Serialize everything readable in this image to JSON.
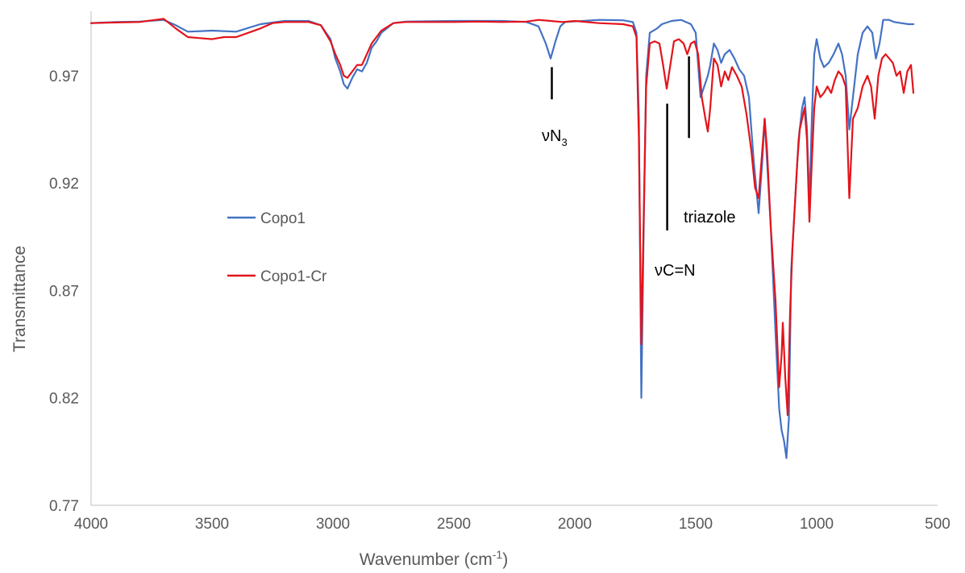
{
  "chart_data": {
    "type": "line",
    "title": "",
    "xlabel": "Wavenumber (cm",
    "xlabel_sup": "-1",
    "xlabel_tail": ")",
    "ylabel": "Transmittance",
    "xlim": [
      4000,
      500
    ],
    "ylim": [
      0.77,
      1.0
    ],
    "x_reversed": true,
    "x_ticks": [
      "4000",
      "3500",
      "3000",
      "2500",
      "2000",
      "1500",
      "1000",
      "500"
    ],
    "y_ticks": [
      "0.77",
      "0.82",
      "0.87",
      "0.92",
      "0.97"
    ],
    "grid": false,
    "legend_position": "center-left",
    "series": [
      {
        "name": "Copo1",
        "color": "#4472C4",
        "points": [
          [
            4000,
            0.9945
          ],
          [
            3900,
            0.995
          ],
          [
            3800,
            0.9952
          ],
          [
            3700,
            0.996
          ],
          [
            3650,
            0.9935
          ],
          [
            3600,
            0.9905
          ],
          [
            3500,
            0.991
          ],
          [
            3400,
            0.9905
          ],
          [
            3300,
            0.994
          ],
          [
            3200,
            0.9955
          ],
          [
            3100,
            0.9955
          ],
          [
            3050,
            0.9935
          ],
          [
            3010,
            0.987
          ],
          [
            2990,
            0.978
          ],
          [
            2970,
            0.972
          ],
          [
            2955,
            0.966
          ],
          [
            2940,
            0.964
          ],
          [
            2920,
            0.969
          ],
          [
            2900,
            0.973
          ],
          [
            2880,
            0.972
          ],
          [
            2860,
            0.976
          ],
          [
            2840,
            0.983
          ],
          [
            2820,
            0.986
          ],
          [
            2800,
            0.99
          ],
          [
            2750,
            0.9945
          ],
          [
            2700,
            0.9952
          ],
          [
            2500,
            0.9955
          ],
          [
            2300,
            0.9955
          ],
          [
            2200,
            0.995
          ],
          [
            2150,
            0.993
          ],
          [
            2120,
            0.985
          ],
          [
            2100,
            0.978
          ],
          [
            2080,
            0.986
          ],
          [
            2060,
            0.993
          ],
          [
            2040,
            0.995
          ],
          [
            1900,
            0.996
          ],
          [
            1800,
            0.9958
          ],
          [
            1760,
            0.995
          ],
          [
            1745,
            0.99
          ],
          [
            1735,
            0.95
          ],
          [
            1725,
            0.82
          ],
          [
            1715,
            0.9
          ],
          [
            1705,
            0.97
          ],
          [
            1690,
            0.99
          ],
          [
            1660,
            0.992
          ],
          [
            1640,
            0.994
          ],
          [
            1600,
            0.9955
          ],
          [
            1560,
            0.996
          ],
          [
            1520,
            0.994
          ],
          [
            1500,
            0.99
          ],
          [
            1480,
            0.96
          ],
          [
            1465,
            0.965
          ],
          [
            1450,
            0.97
          ],
          [
            1440,
            0.975
          ],
          [
            1425,
            0.985
          ],
          [
            1410,
            0.982
          ],
          [
            1395,
            0.976
          ],
          [
            1380,
            0.98
          ],
          [
            1360,
            0.982
          ],
          [
            1340,
            0.978
          ],
          [
            1320,
            0.973
          ],
          [
            1300,
            0.97
          ],
          [
            1280,
            0.96
          ],
          [
            1260,
            0.93
          ],
          [
            1240,
            0.906
          ],
          [
            1225,
            0.93
          ],
          [
            1215,
            0.95
          ],
          [
            1205,
            0.93
          ],
          [
            1190,
            0.9
          ],
          [
            1170,
            0.85
          ],
          [
            1155,
            0.815
          ],
          [
            1145,
            0.805
          ],
          [
            1135,
            0.8
          ],
          [
            1125,
            0.792
          ],
          [
            1115,
            0.81
          ],
          [
            1105,
            0.88
          ],
          [
            1095,
            0.9
          ],
          [
            1085,
            0.92
          ],
          [
            1075,
            0.94
          ],
          [
            1060,
            0.955
          ],
          [
            1050,
            0.96
          ],
          [
            1040,
            0.945
          ],
          [
            1030,
            0.91
          ],
          [
            1020,
            0.95
          ],
          [
            1010,
            0.98
          ],
          [
            1000,
            0.987
          ],
          [
            985,
            0.978
          ],
          [
            970,
            0.974
          ],
          [
            950,
            0.976
          ],
          [
            930,
            0.98
          ],
          [
            910,
            0.985
          ],
          [
            895,
            0.98
          ],
          [
            880,
            0.97
          ],
          [
            865,
            0.945
          ],
          [
            850,
            0.96
          ],
          [
            830,
            0.98
          ],
          [
            810,
            0.99
          ],
          [
            790,
            0.993
          ],
          [
            770,
            0.99
          ],
          [
            755,
            0.978
          ],
          [
            740,
            0.985
          ],
          [
            725,
            0.996
          ],
          [
            700,
            0.996
          ],
          [
            680,
            0.995
          ],
          [
            650,
            0.9945
          ],
          [
            620,
            0.994
          ],
          [
            600,
            0.994
          ]
        ]
      },
      {
        "name": "Copo1-Cr",
        "color": "#E3141B",
        "points": [
          [
            4000,
            0.9945
          ],
          [
            3900,
            0.9948
          ],
          [
            3800,
            0.995
          ],
          [
            3700,
            0.9965
          ],
          [
            3650,
            0.992
          ],
          [
            3600,
            0.988
          ],
          [
            3550,
            0.9875
          ],
          [
            3500,
            0.987
          ],
          [
            3450,
            0.988
          ],
          [
            3400,
            0.988
          ],
          [
            3350,
            0.99
          ],
          [
            3300,
            0.992
          ],
          [
            3250,
            0.9945
          ],
          [
            3200,
            0.995
          ],
          [
            3100,
            0.995
          ],
          [
            3050,
            0.9935
          ],
          [
            3010,
            0.986
          ],
          [
            2990,
            0.98
          ],
          [
            2970,
            0.975
          ],
          [
            2955,
            0.97
          ],
          [
            2940,
            0.969
          ],
          [
            2920,
            0.972
          ],
          [
            2900,
            0.975
          ],
          [
            2880,
            0.975
          ],
          [
            2860,
            0.98
          ],
          [
            2840,
            0.985
          ],
          [
            2820,
            0.988
          ],
          [
            2800,
            0.991
          ],
          [
            2750,
            0.9945
          ],
          [
            2700,
            0.995
          ],
          [
            2600,
            0.995
          ],
          [
            2500,
            0.995
          ],
          [
            2400,
            0.9952
          ],
          [
            2300,
            0.995
          ],
          [
            2200,
            0.9952
          ],
          [
            2150,
            0.996
          ],
          [
            2100,
            0.9955
          ],
          [
            2050,
            0.995
          ],
          [
            2000,
            0.9955
          ],
          [
            1900,
            0.9945
          ],
          [
            1800,
            0.994
          ],
          [
            1760,
            0.993
          ],
          [
            1745,
            0.988
          ],
          [
            1735,
            0.94
          ],
          [
            1725,
            0.845
          ],
          [
            1715,
            0.905
          ],
          [
            1705,
            0.965
          ],
          [
            1690,
            0.985
          ],
          [
            1670,
            0.986
          ],
          [
            1650,
            0.985
          ],
          [
            1635,
            0.975
          ],
          [
            1620,
            0.964
          ],
          [
            1605,
            0.975
          ],
          [
            1590,
            0.986
          ],
          [
            1570,
            0.987
          ],
          [
            1550,
            0.985
          ],
          [
            1535,
            0.98
          ],
          [
            1520,
            0.985
          ],
          [
            1505,
            0.986
          ],
          [
            1490,
            0.98
          ],
          [
            1475,
            0.96
          ],
          [
            1460,
            0.95
          ],
          [
            1450,
            0.944
          ],
          [
            1440,
            0.955
          ],
          [
            1425,
            0.978
          ],
          [
            1410,
            0.975
          ],
          [
            1395,
            0.965
          ],
          [
            1380,
            0.972
          ],
          [
            1365,
            0.968
          ],
          [
            1350,
            0.974
          ],
          [
            1330,
            0.97
          ],
          [
            1310,
            0.965
          ],
          [
            1290,
            0.952
          ],
          [
            1270,
            0.935
          ],
          [
            1255,
            0.918
          ],
          [
            1240,
            0.913
          ],
          [
            1225,
            0.935
          ],
          [
            1215,
            0.95
          ],
          [
            1205,
            0.935
          ],
          [
            1190,
            0.9
          ],
          [
            1170,
            0.865
          ],
          [
            1155,
            0.825
          ],
          [
            1145,
            0.84
          ],
          [
            1140,
            0.855
          ],
          [
            1130,
            0.83
          ],
          [
            1120,
            0.812
          ],
          [
            1110,
            0.86
          ],
          [
            1100,
            0.89
          ],
          [
            1090,
            0.91
          ],
          [
            1080,
            0.93
          ],
          [
            1070,
            0.945
          ],
          [
            1060,
            0.95
          ],
          [
            1050,
            0.955
          ],
          [
            1040,
            0.94
          ],
          [
            1030,
            0.902
          ],
          [
            1020,
            0.93
          ],
          [
            1010,
            0.955
          ],
          [
            1000,
            0.965
          ],
          [
            985,
            0.96
          ],
          [
            970,
            0.962
          ],
          [
            955,
            0.965
          ],
          [
            940,
            0.962
          ],
          [
            925,
            0.968
          ],
          [
            910,
            0.972
          ],
          [
            895,
            0.97
          ],
          [
            880,
            0.965
          ],
          [
            865,
            0.913
          ],
          [
            850,
            0.95
          ],
          [
            830,
            0.955
          ],
          [
            810,
            0.965
          ],
          [
            790,
            0.97
          ],
          [
            775,
            0.965
          ],
          [
            760,
            0.95
          ],
          [
            745,
            0.97
          ],
          [
            730,
            0.978
          ],
          [
            715,
            0.98
          ],
          [
            700,
            0.978
          ],
          [
            685,
            0.976
          ],
          [
            670,
            0.97
          ],
          [
            655,
            0.972
          ],
          [
            640,
            0.962
          ],
          [
            625,
            0.972
          ],
          [
            610,
            0.975
          ],
          [
            600,
            0.962
          ]
        ]
      }
    ],
    "annotations": [
      {
        "id": "n3",
        "text": "ν",
        "main": "N",
        "sub": "3",
        "x": 2095,
        "line_top": 0.974,
        "line_bottom": 0.959
      },
      {
        "id": "cn",
        "text": "νC=N",
        "x": 1618,
        "line_top": 0.957,
        "line_bottom": 0.898
      },
      {
        "id": "triazole",
        "text": "triazole",
        "x": 1528,
        "line_top": 0.979,
        "line_bottom": 0.941
      }
    ]
  }
}
